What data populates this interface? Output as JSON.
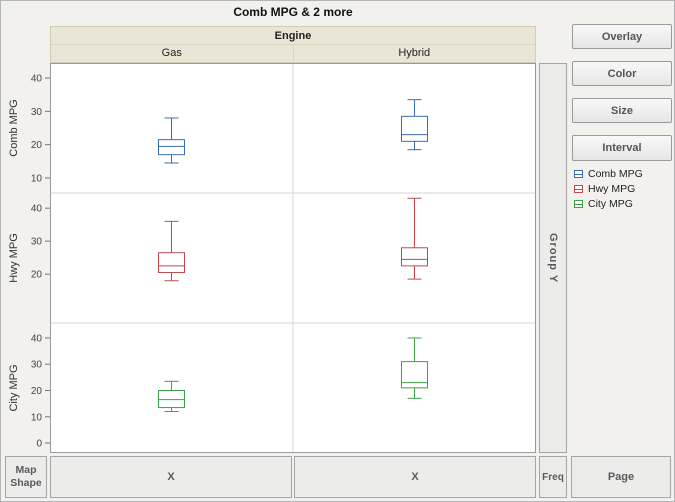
{
  "title": "Comb MPG & 2 more",
  "column_group": {
    "label": "Engine",
    "categories": [
      "Gas",
      "Hybrid"
    ]
  },
  "buttons": [
    "Overlay",
    "Color",
    "Size",
    "Interval"
  ],
  "legend": [
    {
      "label": "Comb MPG",
      "color": "#3a6bb0"
    },
    {
      "label": "Hwy MPG",
      "color": "#bb4a50"
    },
    {
      "label": "City MPG",
      "color": "#3fa048"
    }
  ],
  "zones": {
    "map_shape": [
      "Map",
      "Shape"
    ],
    "x_left": "X",
    "x_right": "X",
    "group_y": "Group Y",
    "freq": "Freq",
    "page": "Page"
  },
  "chart_data": {
    "type": "box",
    "title": "Comb MPG & 2 more",
    "facet_columns": {
      "label": "Engine",
      "categories": [
        "Gas",
        "Hybrid"
      ]
    },
    "legend_position": "right",
    "grid": false,
    "rows": [
      {
        "label": "Comb MPG",
        "color": "#3a6bb0",
        "ticks": [
          10,
          20,
          30,
          40
        ],
        "domain": [
          5.5,
          44.5
        ],
        "boxes": {
          "Gas": {
            "low": 14.5,
            "q1": 17,
            "median": 19.5,
            "q3": 21.5,
            "high": 28
          },
          "Hybrid": {
            "low": 18.5,
            "q1": 21,
            "median": 23,
            "q3": 28.5,
            "high": 33.5
          }
        }
      },
      {
        "label": "Hwy MPG",
        "color": "#bb4a50",
        "ticks": [
          20,
          30,
          40
        ],
        "domain": [
          5.2,
          44.6
        ],
        "boxes": {
          "Gas": {
            "low": 18,
            "q1": 20.5,
            "median": 22.5,
            "q3": 26.5,
            "high": 36
          },
          "Hybrid": {
            "low": 18.5,
            "q1": 22.5,
            "median": 24.5,
            "q3": 28,
            "high": 43
          }
        }
      },
      {
        "label": "City MPG",
        "color": "#3fa048",
        "ticks": [
          0,
          10,
          20,
          30,
          40
        ],
        "domain": [
          -3.8,
          45.7
        ],
        "boxes": {
          "Gas": {
            "low": 12,
            "q1": 13.5,
            "median": 16.5,
            "q3": 20,
            "high": 23.5
          },
          "Hybrid": {
            "low": 17,
            "q1": 21,
            "median": 23,
            "q3": 31,
            "high": 40
          }
        }
      }
    ]
  }
}
